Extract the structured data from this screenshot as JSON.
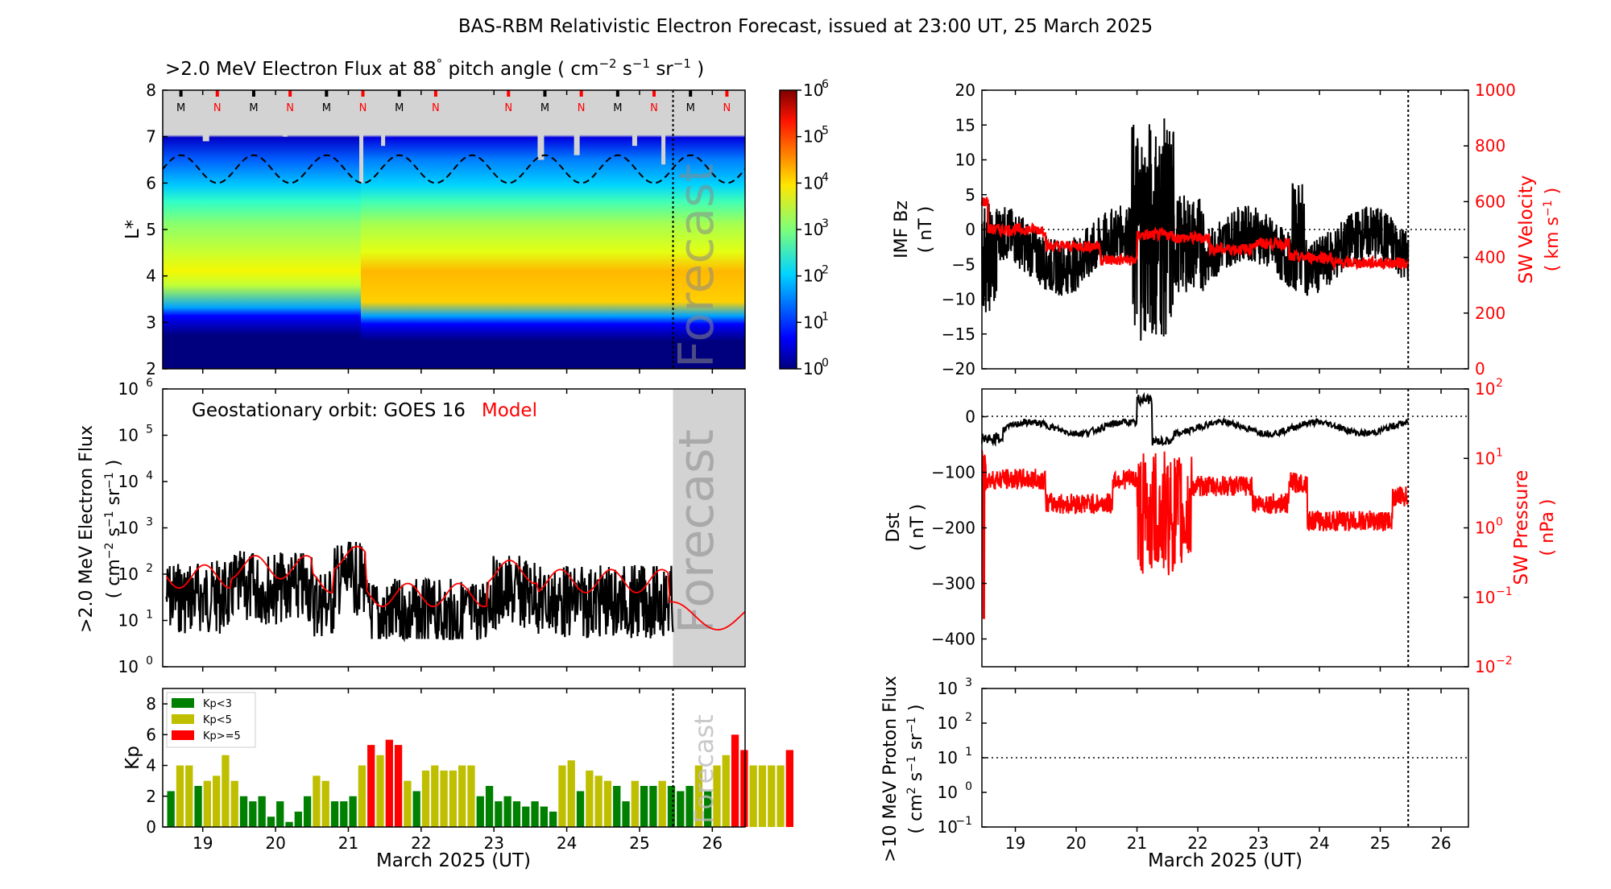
{
  "title": "BAS-RBM Relativistic Electron Forecast, issued at 23:00 UT, 25 March 2025",
  "colors": {
    "black": "#000000",
    "red": "#ff0000",
    "grey": "#d3d3d3",
    "kp_low": "#008000",
    "kp_mid": "#bfbf00",
    "kp_high": "#ff0000"
  },
  "common": {
    "xlabel": "March 2025 (UT)",
    "xlim": [
      18.45,
      26.45
    ],
    "xticks": [
      "19",
      "20",
      "21",
      "22",
      "23",
      "24",
      "25",
      "26"
    ],
    "xtick_values": [
      19,
      20,
      21,
      22,
      23,
      24,
      25,
      26
    ],
    "forecast_start": 25.46,
    "forecast_label": "Forecast"
  },
  "chart_data": [
    {
      "id": "lstar",
      "type": "heatmap",
      "title": ">2.0 MeV Electron Flux at 88",
      "title_degree": "°",
      "title_units": " pitch angle ( cm",
      "title_units_exp1": "−2",
      "title_units_mid1": " s",
      "title_units_exp2": "−1",
      "title_units_mid2": " sr",
      "title_units_exp3": "−1",
      "title_units_end": " )",
      "ylabel": "L*",
      "ylim": [
        2,
        8
      ],
      "yticks": [
        "2",
        "3",
        "4",
        "5",
        "6",
        "7",
        "8"
      ],
      "ytick_values": [
        2,
        3,
        4,
        5,
        6,
        7,
        8
      ],
      "colorbar": {
        "range_log10": [
          0,
          6
        ],
        "ticks": [
          "10",
          "10",
          "10",
          "10",
          "10",
          "10",
          "10"
        ],
        "tick_exps": [
          "0",
          "1",
          "2",
          "3",
          "4",
          "5",
          "6"
        ]
      },
      "orbit_markers": [
        {
          "x": 18.7,
          "label": "M",
          "color": "#000000"
        },
        {
          "x": 19.2,
          "label": "N",
          "color": "#ff0000"
        },
        {
          "x": 19.7,
          "label": "M",
          "color": "#000000"
        },
        {
          "x": 20.2,
          "label": "N",
          "color": "#ff0000"
        },
        {
          "x": 20.7,
          "label": "M",
          "color": "#000000"
        },
        {
          "x": 21.2,
          "label": "N",
          "color": "#ff0000"
        },
        {
          "x": 21.7,
          "label": "M",
          "color": "#000000"
        },
        {
          "x": 22.2,
          "label": "N",
          "color": "#ff0000"
        },
        {
          "x": 23.2,
          "label": "N",
          "color": "#ff0000"
        },
        {
          "x": 23.7,
          "label": "M",
          "color": "#000000"
        },
        {
          "x": 24.2,
          "label": "N",
          "color": "#ff0000"
        },
        {
          "x": 24.7,
          "label": "M",
          "color": "#000000"
        },
        {
          "x": 25.2,
          "label": "N",
          "color": "#ff0000"
        },
        {
          "x": 25.7,
          "label": "M",
          "color": "#000000"
        },
        {
          "x": 26.2,
          "label": "N",
          "color": "#ff0000"
        }
      ],
      "geo_lstar_range": [
        6.0,
        6.6
      ],
      "geo_lstar_period_days": 1.0
    },
    {
      "id": "geo",
      "type": "line",
      "ylabel_line1": ">2.0 MeV Electron Flux",
      "ylabel_line2_a": "( cm",
      "ylabel_line2_exp1": "−2",
      "ylabel_line2_b": " s",
      "ylabel_line2_exp2": "−1",
      "ylabel_line2_c": " sr",
      "ylabel_line2_exp3": "−1",
      "ylabel_line2_d": " )",
      "yscale": "log",
      "ylim_log10": [
        0,
        6
      ],
      "yticks": [
        "10",
        "10",
        "10",
        "10",
        "10",
        "10",
        "10"
      ],
      "ytick_exps": [
        "0",
        "1",
        "2",
        "3",
        "4",
        "5",
        "6"
      ],
      "legend_prefix": "Geostationary orbit:   GOES 16",
      "legend_model": "Model",
      "series": [
        {
          "name": "GOES 16",
          "color": "#000000"
        },
        {
          "name": "Model",
          "color": "#ff0000"
        }
      ]
    },
    {
      "id": "kp",
      "type": "bar",
      "ylabel": "Kp",
      "ylim": [
        0,
        9
      ],
      "yticks": [
        "0",
        "2",
        "4",
        "6",
        "8"
      ],
      "ytick_values": [
        0,
        2,
        4,
        6,
        8
      ],
      "legend": [
        {
          "label": "Kp<3",
          "color": "#008000"
        },
        {
          "label": "Kp<5",
          "color": "#bfbf00"
        },
        {
          "label": "Kp>=5",
          "color": "#ff0000"
        }
      ],
      "start_day": 18.5,
      "bar_step_days": 0.125,
      "values": [
        2.33,
        4.0,
        4.0,
        2.67,
        3.0,
        3.33,
        4.67,
        3.0,
        2.0,
        1.67,
        2.0,
        0.67,
        1.67,
        0.33,
        1.0,
        2.0,
        3.33,
        3.0,
        1.67,
        1.67,
        2.0,
        4.0,
        5.33,
        4.67,
        5.67,
        5.33,
        3.0,
        2.33,
        3.67,
        4.0,
        3.67,
        3.67,
        4.0,
        4.0,
        2.0,
        2.67,
        1.67,
        2.0,
        1.67,
        1.33,
        1.67,
        1.33,
        1.0,
        4.0,
        4.33,
        2.33,
        3.67,
        3.33,
        3.0,
        2.67,
        1.67,
        3.0,
        2.67,
        2.67,
        3.0,
        2.67,
        2.33,
        2.67,
        4.0,
        2.33,
        4.0,
        4.67,
        6.0,
        5.0,
        4.0,
        4.0,
        4.0,
        4.0,
        5.0
      ]
    },
    {
      "id": "imf",
      "type": "line",
      "ylabel_line1": "IMF Bz",
      "ylabel_line2": "( nT )",
      "ylim": [
        -20,
        20
      ],
      "yticks": [
        "−20",
        "−15",
        "−10",
        "−5",
        "0",
        "5",
        "10",
        "15",
        "20"
      ],
      "ytick_values": [
        -20,
        -15,
        -10,
        -5,
        0,
        5,
        10,
        15,
        20
      ],
      "right_ylabel_line1": "SW Velocity",
      "right_ylabel_line2_a": "( km s",
      "right_ylabel_line2_exp": "−1",
      "right_ylabel_line2_b": " )",
      "right_ylim": [
        0,
        1000
      ],
      "right_yticks": [
        "0",
        "200",
        "400",
        "600",
        "800",
        "1000"
      ],
      "right_ytick_values": [
        0,
        200,
        400,
        600,
        800,
        1000
      ],
      "series": [
        {
          "name": "IMF Bz",
          "color": "#000000"
        },
        {
          "name": "SW Velocity",
          "color": "#ff0000"
        }
      ]
    },
    {
      "id": "dst",
      "type": "line",
      "ylabel_line1": "Dst",
      "ylabel_line2": "( nT )",
      "ylim": [
        -450,
        50
      ],
      "yticks": [
        "−400",
        "−300",
        "−200",
        "−100",
        "0"
      ],
      "ytick_values": [
        -400,
        -300,
        -200,
        -100,
        0
      ],
      "right_ylabel_line1": "SW Pressure",
      "right_ylabel_line2": "( nPa )",
      "right_ylim_log10": [
        -2,
        2
      ],
      "right_yticks": [
        "10",
        "10",
        "10",
        "10",
        "10"
      ],
      "right_ytick_exps": [
        "−2",
        "−1",
        "0",
        "1",
        "2"
      ],
      "series": [
        {
          "name": "Dst",
          "color": "#000000"
        },
        {
          "name": "SW Pressure",
          "color": "#ff0000"
        }
      ]
    },
    {
      "id": "proton",
      "type": "line",
      "ylabel_line1": ">10 MeV Proton Flux",
      "ylabel_line2_a": "( cm",
      "ylabel_line2_exp1": "2",
      "ylabel_line2_b": " s",
      "ylabel_line2_exp2": "−1",
      "ylabel_line2_c": " sr",
      "ylabel_line2_exp3": "−1",
      "ylabel_line2_d": " )",
      "ylim_log10": [
        -1,
        3
      ],
      "yticks": [
        "10",
        "10",
        "10",
        "10",
        "10"
      ],
      "ytick_exps": [
        "−1",
        "0",
        "1",
        "2",
        "3"
      ],
      "threshold": 10
    }
  ]
}
